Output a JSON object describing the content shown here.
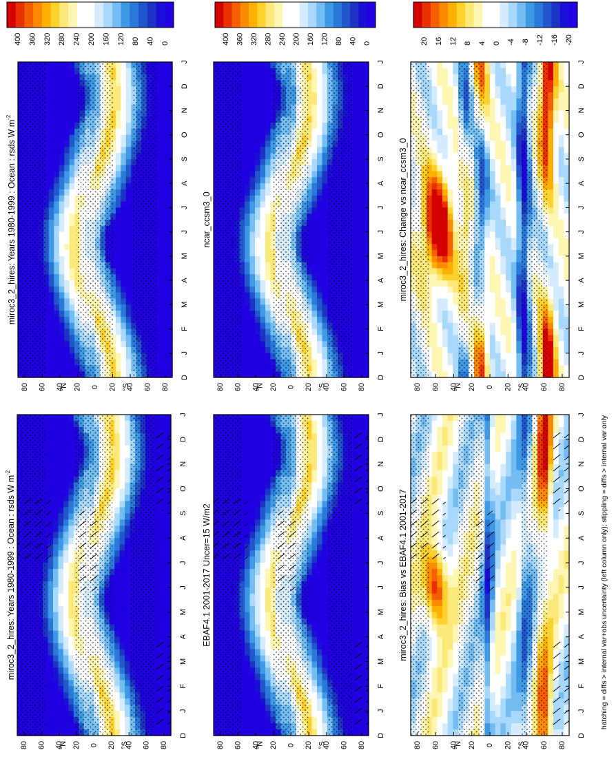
{
  "footer_note": "hatching = diffs > internal var+obs uncertainty (left column only); stippling = diffs > internal var only",
  "colorbars": {
    "absolute": {
      "labels": [
        "400",
        "360",
        "320",
        "280",
        "240",
        "200",
        "160",
        "120",
        "80",
        "40",
        "0"
      ],
      "colors": [
        "#d40000",
        "#e93200",
        "#f55f00",
        "#fb8a00",
        "#fdb000",
        "#fdd12e",
        "#fde97a",
        "#fff6b3",
        "#ffffff",
        "#ffffff",
        "#d5ecff",
        "#a8d8fb",
        "#74bdf3",
        "#3f99e4",
        "#2a78d8",
        "#2257cc",
        "#1c33c4",
        "#1a0fd6",
        "#2000e0"
      ]
    },
    "difference": {
      "labels": [
        "20",
        "16",
        "12",
        "8",
        "4",
        "0",
        "-4",
        "-8",
        "-12",
        "-16",
        "-20"
      ],
      "colors": [
        "#d40000",
        "#e93200",
        "#f55f00",
        "#fb8a00",
        "#fdb000",
        "#fdd12e",
        "#fde97a",
        "#fff6b3",
        "#ffffff",
        "#ffffff",
        "#d5ecff",
        "#a8d8fb",
        "#74bdf3",
        "#3f99e4",
        "#2a78d8",
        "#2257cc",
        "#1c33c4",
        "#1a0fd6",
        "#2000e0"
      ]
    }
  },
  "chart_data": [
    {
      "type": "heatmap",
      "title": "miroc3_2_hires: Years 1980-1999 : Ocean : rsds W m",
      "title_sup": "-2",
      "x_ticks": [
        "D",
        "J",
        "F",
        "M",
        "A",
        "M",
        "J",
        "J",
        "A",
        "S",
        "O",
        "N",
        "D",
        "J"
      ],
      "y_ticks": [
        "80",
        "60",
        "40",
        "20",
        "0",
        "20",
        "40",
        "60",
        "80"
      ],
      "y_hemisphere_labels": [
        "°N",
        "°S"
      ],
      "field": "absolute",
      "colorbar": "absolute",
      "stippling": true,
      "hatching": true
    },
    {
      "type": "heatmap",
      "title": "miroc3_2_hires: Years 1980-1999 : Ocean : rsds W m",
      "title_sup": "-2",
      "x_ticks": [
        "D",
        "J",
        "F",
        "M",
        "A",
        "M",
        "J",
        "J",
        "A",
        "S",
        "O",
        "N",
        "D",
        "J"
      ],
      "y_ticks": [
        "80",
        "60",
        "40",
        "20",
        "0",
        "20",
        "40",
        "60",
        "80"
      ],
      "y_hemisphere_labels": [
        "°N",
        "°S"
      ],
      "field": "absolute",
      "colorbar": "absolute",
      "stippling": true,
      "hatching": false
    },
    {
      "type": "heatmap",
      "title": "EBAF4.1 2001-2017 Uncer=15 W/m2",
      "title_sup": "",
      "x_ticks": [
        "D",
        "J",
        "F",
        "M",
        "A",
        "M",
        "J",
        "J",
        "A",
        "S",
        "O",
        "N",
        "D",
        "J"
      ],
      "y_ticks": [
        "80",
        "60",
        "40",
        "20",
        "0",
        "20",
        "40",
        "60",
        "80"
      ],
      "y_hemisphere_labels": [
        "°N",
        "°S"
      ],
      "field": "absolute",
      "colorbar": "absolute",
      "stippling": true,
      "hatching": true
    },
    {
      "type": "heatmap",
      "title": "ncar_ccsm3_0",
      "title_sup": "",
      "x_ticks": [
        "D",
        "J",
        "F",
        "M",
        "A",
        "M",
        "J",
        "J",
        "A",
        "S",
        "O",
        "N",
        "D",
        "J"
      ],
      "y_ticks": [
        "80",
        "60",
        "40",
        "20",
        "0",
        "20",
        "40",
        "60",
        "80"
      ],
      "y_hemisphere_labels": [
        "°N",
        "°S"
      ],
      "field": "absolute",
      "colorbar": "absolute",
      "stippling": true,
      "hatching": false
    },
    {
      "type": "heatmap",
      "title": "miroc3_2_hires: Bias vs EBAF4.1 2001-2017",
      "title_sup": "",
      "x_ticks": [
        "D",
        "J",
        "F",
        "M",
        "A",
        "M",
        "J",
        "J",
        "A",
        "S",
        "O",
        "N",
        "D",
        "J"
      ],
      "y_ticks": [
        "80",
        "60",
        "40",
        "20",
        "0",
        "20",
        "40",
        "60",
        "80"
      ],
      "y_hemisphere_labels": [
        "°N",
        "°S"
      ],
      "field": "bias",
      "colorbar": "difference",
      "stippling": true,
      "hatching": true
    },
    {
      "type": "heatmap",
      "title": "miroc3_2_hires: Change vs ncar_ccsm3_0",
      "title_sup": "",
      "x_ticks": [
        "D",
        "J",
        "F",
        "M",
        "A",
        "M",
        "J",
        "J",
        "A",
        "S",
        "O",
        "N",
        "D",
        "J"
      ],
      "y_ticks": [
        "80",
        "60",
        "40",
        "20",
        "0",
        "20",
        "40",
        "60",
        "80"
      ],
      "y_hemisphere_labels": [
        "°N",
        "°S"
      ],
      "field": "change",
      "colorbar": "difference",
      "stippling": true,
      "hatching": false
    }
  ]
}
